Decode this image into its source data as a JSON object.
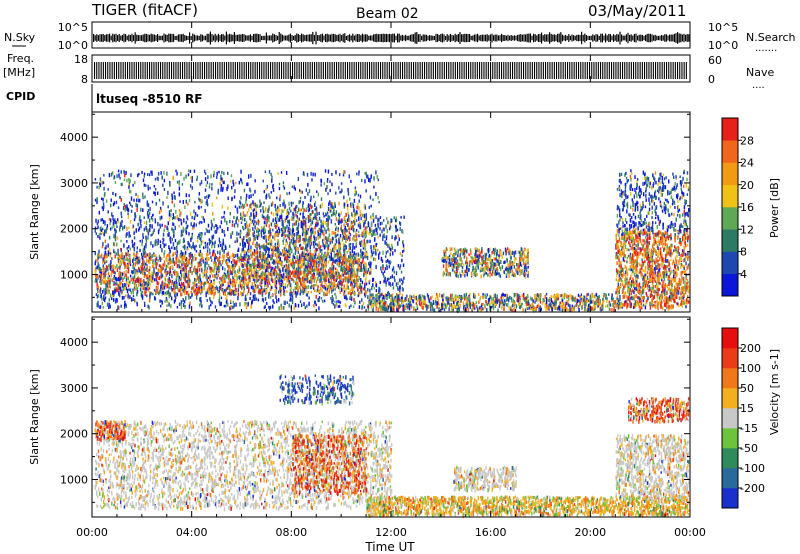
{
  "header": {
    "radar": "TIGER (fitACF)",
    "beam": "Beam 02",
    "date": "03/May/2011"
  },
  "nsky_panel": {
    "left_label": "N.Sky",
    "right_label": "N.Search",
    "right_dots": ".......",
    "left_ticks": [
      "10^5",
      "10^0"
    ],
    "right_ticks": [
      "10^5",
      "10^0"
    ]
  },
  "freq_panel": {
    "left_label_1": "Freq.",
    "left_label_2": "[MHz]",
    "right_label": "Nave",
    "right_dots": "....",
    "left_ticks": [
      "18",
      "8"
    ],
    "right_ticks": [
      "60",
      "0"
    ]
  },
  "cpid": {
    "label": "CPID",
    "value": "ltusеq -8510 RF"
  },
  "time_axis": {
    "label": "Time UT",
    "ticks": [
      "00:00",
      "04:00",
      "08:00",
      "12:00",
      "16:00",
      "20:00",
      "00:00"
    ]
  },
  "chart_data": [
    {
      "type": "heatmap",
      "title": "",
      "xlabel": "",
      "ylabel": "Slant Range [km]",
      "xlim": [
        0,
        24
      ],
      "ylim": [
        180,
        4550
      ],
      "yticks": [
        "1000",
        "2000",
        "3000",
        "4000"
      ],
      "colorbar": {
        "label": "Power [dB]",
        "ticks": [
          "4",
          "8",
          "12",
          "16",
          "20",
          "24",
          "28"
        ],
        "colors": [
          "#0b16d8",
          "#1e48b0",
          "#2d7a64",
          "#5fa855",
          "#f0c218",
          "#f29a14",
          "#f0671c",
          "#e6211c"
        ]
      }
    },
    {
      "type": "heatmap",
      "title": "",
      "xlabel": "Time UT",
      "ylabel": "Slant Range [km]",
      "xlim": [
        0,
        24
      ],
      "ylim": [
        180,
        4550
      ],
      "yticks": [
        "1000",
        "2000",
        "3000",
        "4000"
      ],
      "colorbar": {
        "label": "Velocity [m s-1]",
        "ticks": [
          "200",
          "100",
          "50",
          "15",
          "-15",
          "-50",
          "-100",
          "-200"
        ],
        "colors": [
          "#1a2fcc",
          "#2a6a9a",
          "#2f8a5c",
          "#6cc43c",
          "#c8c8c8",
          "#f2b020",
          "#f07818",
          "#ea3c18",
          "#e60e0e"
        ]
      }
    }
  ]
}
